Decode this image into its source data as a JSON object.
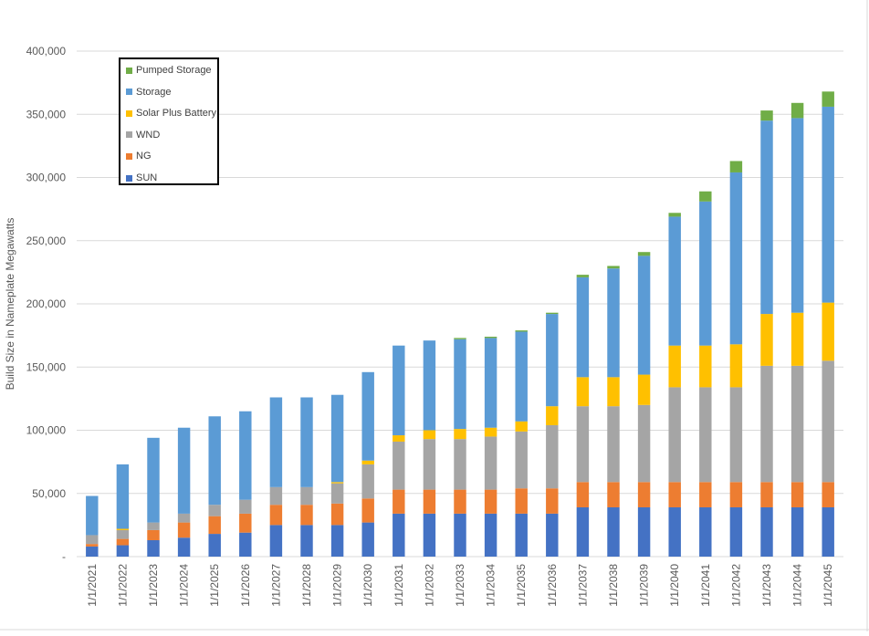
{
  "chart_data": {
    "type": "bar",
    "stacked": true,
    "title": "",
    "xlabel": "",
    "ylabel": "Build Size in Nameplate Megawatts",
    "ylim": [
      0,
      400000
    ],
    "y_ticks": [
      "-",
      "50,000",
      "100,000",
      "150,000",
      "200,000",
      "250,000",
      "300,000",
      "350,000",
      "400,000"
    ],
    "grid": true,
    "legend_position": "top-left",
    "categories": [
      "1/1/2021",
      "1/1/2022",
      "1/1/2023",
      "1/1/2024",
      "1/1/2025",
      "1/1/2026",
      "1/1/2027",
      "1/1/2028",
      "1/1/2029",
      "1/1/2030",
      "1/1/2031",
      "1/1/2032",
      "1/1/2033",
      "1/1/2034",
      "1/1/2035",
      "1/1/2036",
      "1/1/2037",
      "1/1/2038",
      "1/1/2039",
      "1/1/2040",
      "1/1/2041",
      "1/1/2042",
      "1/1/2043",
      "1/1/2044",
      "1/1/2045"
    ],
    "series": [
      {
        "name": "SUN",
        "color": "#4472c4",
        "values": [
          8000,
          9000,
          13000,
          15000,
          18000,
          19000,
          25000,
          25000,
          25000,
          27000,
          34000,
          34000,
          34000,
          34000,
          34000,
          34000,
          39000,
          39000,
          39000,
          39000,
          39000,
          39000,
          39000,
          39000,
          39000
        ]
      },
      {
        "name": "NG",
        "color": "#ed7d31",
        "values": [
          2000,
          5000,
          8000,
          12000,
          14000,
          15000,
          16000,
          16000,
          17000,
          19000,
          19000,
          19000,
          19000,
          19000,
          20000,
          20000,
          20000,
          20000,
          20000,
          20000,
          20000,
          20000,
          20000,
          20000,
          20000
        ]
      },
      {
        "name": "WND",
        "color": "#a5a5a5",
        "values": [
          7000,
          7000,
          6000,
          7000,
          9000,
          11000,
          14000,
          14000,
          16000,
          27000,
          38000,
          40000,
          40000,
          42000,
          45000,
          50000,
          60000,
          60000,
          61000,
          75000,
          75000,
          75000,
          92000,
          92000,
          96000
        ]
      },
      {
        "name": "Solar Plus Battery",
        "color": "#ffc000",
        "values": [
          0,
          1000,
          0,
          0,
          0,
          0,
          0,
          0,
          1000,
          3000,
          5000,
          7000,
          8000,
          7000,
          8000,
          15000,
          23000,
          23000,
          24000,
          33000,
          33000,
          34000,
          41000,
          42000,
          46000
        ]
      },
      {
        "name": "Storage",
        "color": "#5b9bd5",
        "values": [
          31000,
          51000,
          67000,
          68000,
          70000,
          70000,
          71000,
          71000,
          69000,
          70000,
          71000,
          71000,
          71000,
          71000,
          71000,
          73000,
          79000,
          86000,
          94000,
          102000,
          114000,
          136000,
          153000,
          154000,
          155000
        ]
      },
      {
        "name": "Pumped Storage",
        "color": "#70ad47",
        "values": [
          0,
          0,
          0,
          0,
          0,
          0,
          0,
          0,
          0,
          0,
          0,
          0,
          1000,
          1000,
          1000,
          1000,
          2000,
          2000,
          3000,
          3000,
          8000,
          9000,
          8000,
          12000,
          12000
        ]
      }
    ]
  },
  "legend_order": [
    "Pumped Storage",
    "Storage",
    "Solar Plus Battery",
    "WND",
    "NG",
    "SUN"
  ]
}
